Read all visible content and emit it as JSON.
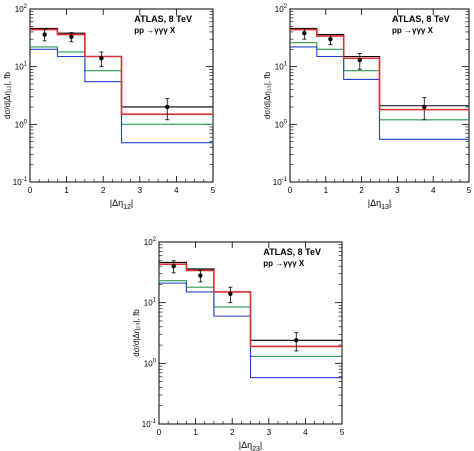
{
  "chart_data": [
    {
      "type": "line",
      "panel": "dEta12",
      "title": "ATLAS, 8 TeV",
      "subtitle": "pp →γγγ X",
      "xlabel": "|Δη",
      "xlabel_sub": "12",
      "xlabel_close": "|",
      "ylabel": "dσ/d|Δη₁₂|, fb",
      "xlim": [
        0,
        5
      ],
      "ylim": [
        0.1,
        100
      ],
      "yscale": "log",
      "bin_edges": [
        0,
        0.75,
        1.5,
        2.5,
        5
      ],
      "data_points": [
        {
          "x": 0.4,
          "y": 36,
          "yerr_lo": 8,
          "yerr_hi": 8,
          "xerr": 0.38
        },
        {
          "x": 1.13,
          "y": 33,
          "yerr_lo": 6,
          "yerr_hi": 6,
          "xerr": 0.37
        },
        {
          "x": 1.95,
          "y": 14,
          "yerr_lo": 4,
          "yerr_hi": 4,
          "xerr": 0.45
        },
        {
          "x": 3.75,
          "y": 2.0,
          "yerr_lo": 0.8,
          "yerr_hi": 0.8,
          "xerr": 1.25
        }
      ],
      "series": [
        {
          "color": "#000000",
          "values": [
            46,
            38,
            15,
            2.0
          ]
        },
        {
          "color": "#e03030",
          "values": [
            44,
            36,
            15,
            1.5
          ]
        },
        {
          "color": "#2a9a50",
          "values": [
            22,
            18,
            8.5,
            1.0
          ]
        },
        {
          "color": "#2040d0",
          "values": [
            20,
            15,
            5.5,
            0.48
          ]
        }
      ]
    },
    {
      "type": "line",
      "panel": "dEta13",
      "title": "ATLAS, 8 TeV",
      "subtitle": "pp →γγγ X",
      "xlabel": "|Δη",
      "xlabel_sub": "13",
      "xlabel_close": "|",
      "ylabel": "dσ/d|Δη₁₃|, fb",
      "xlim": [
        0,
        5
      ],
      "ylim": [
        0.1,
        100
      ],
      "yscale": "log",
      "bin_edges": [
        0,
        0.75,
        1.5,
        2.5,
        5
      ],
      "data_points": [
        {
          "x": 0.4,
          "y": 38,
          "yerr_lo": 8,
          "yerr_hi": 8,
          "xerr": 0.38
        },
        {
          "x": 1.13,
          "y": 30,
          "yerr_lo": 6,
          "yerr_hi": 6,
          "xerr": 0.37
        },
        {
          "x": 1.95,
          "y": 13,
          "yerr_lo": 4,
          "yerr_hi": 4,
          "xerr": 0.45
        },
        {
          "x": 3.75,
          "y": 2.0,
          "yerr_lo": 0.8,
          "yerr_hi": 0.9,
          "xerr": 1.25
        }
      ],
      "series": [
        {
          "color": "#000000",
          "values": [
            46,
            36,
            15,
            2.1
          ]
        },
        {
          "color": "#e03030",
          "values": [
            44,
            34,
            14,
            1.8
          ]
        },
        {
          "color": "#2a9a50",
          "values": [
            26,
            20,
            8.5,
            1.2
          ]
        },
        {
          "color": "#2040d0",
          "values": [
            22,
            15,
            6,
            0.55
          ]
        }
      ]
    },
    {
      "type": "line",
      "panel": "dEta23",
      "title": "ATLAS, 8 TeV",
      "subtitle": "pp →γγγ X",
      "xlabel": "|Δη",
      "xlabel_sub": "23",
      "xlabel_close": "|",
      "ylabel": "dσ/d|Δη₂₃|, fb",
      "xlim": [
        0,
        5
      ],
      "ylim": [
        0.1,
        100
      ],
      "yscale": "log",
      "bin_edges": [
        0,
        0.75,
        1.5,
        2.5,
        5
      ],
      "data_points": [
        {
          "x": 0.4,
          "y": 40,
          "yerr_lo": 9,
          "yerr_hi": 9,
          "xerr": 0.38
        },
        {
          "x": 1.13,
          "y": 28,
          "yerr_lo": 6,
          "yerr_hi": 6,
          "xerr": 0.37
        },
        {
          "x": 1.95,
          "y": 14,
          "yerr_lo": 4,
          "yerr_hi": 4,
          "xerr": 0.45
        },
        {
          "x": 3.75,
          "y": 2.4,
          "yerr_lo": 0.8,
          "yerr_hi": 0.8,
          "xerr": 1.25
        }
      ],
      "series": [
        {
          "color": "#000000",
          "values": [
            46,
            36,
            15,
            2.4
          ]
        },
        {
          "color": "#e03030",
          "values": [
            43,
            34,
            15,
            1.9
          ]
        },
        {
          "color": "#2a9a50",
          "values": [
            23,
            18,
            8.5,
            1.3
          ]
        },
        {
          "color": "#2040d0",
          "values": [
            21,
            15,
            6,
            0.58
          ]
        }
      ]
    }
  ],
  "axis_ticks": {
    "x": [
      "0",
      "1",
      "2",
      "3",
      "4",
      "5"
    ],
    "y": [
      {
        "base": "10",
        "exp": "-1",
        "value": 0.1
      },
      {
        "base": "10",
        "exp": "0",
        "value": 1
      },
      {
        "base": "10",
        "exp": "1",
        "value": 10
      },
      {
        "base": "10",
        "exp": "2",
        "value": 100
      }
    ]
  }
}
